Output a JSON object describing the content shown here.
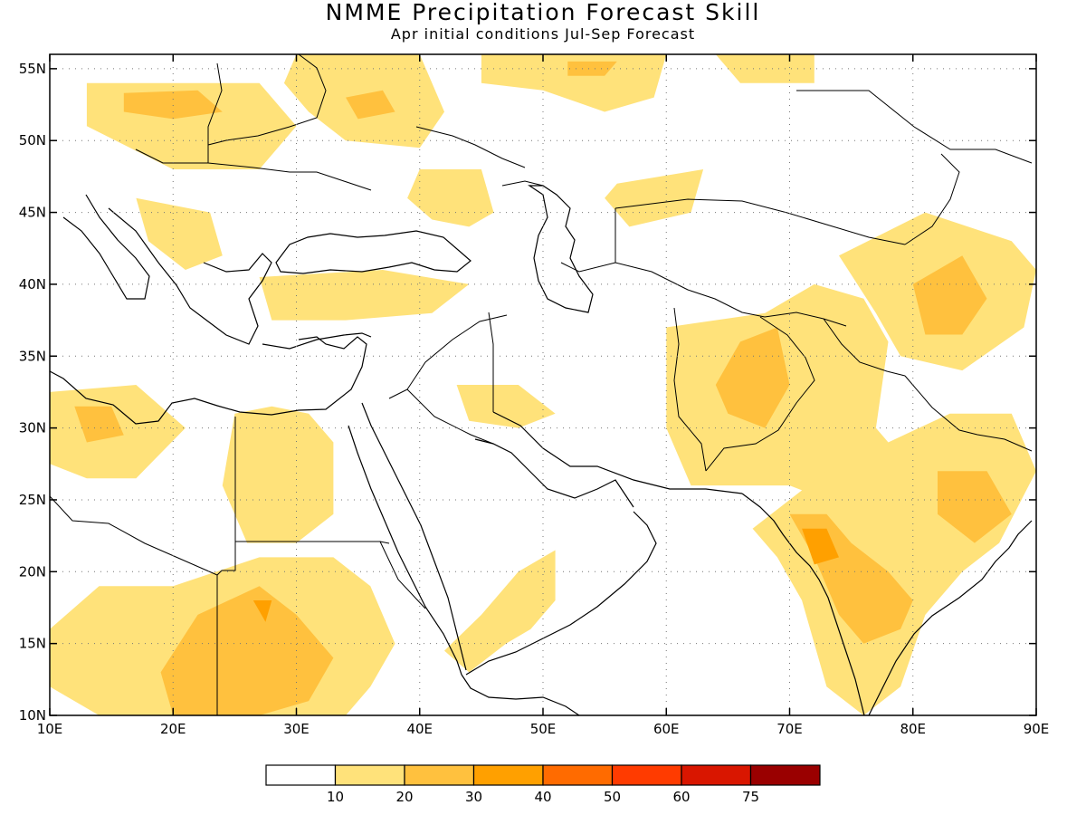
{
  "title": "NMME Precipitation Forecast Skill",
  "subtitle": "Apr initial conditions  Jul-Sep Forecast",
  "map": {
    "lon_range": [
      10,
      90
    ],
    "lat_range": [
      10,
      56
    ],
    "lon_ticks": [
      "10E",
      "20E",
      "30E",
      "40E",
      "50E",
      "60E",
      "70E",
      "80E",
      "90E"
    ],
    "lat_ticks": [
      "10N",
      "15N",
      "20N",
      "25N",
      "30N",
      "35N",
      "40N",
      "45N",
      "50N",
      "55N"
    ],
    "grid": "dotted"
  },
  "colorbar": {
    "labels": [
      "10",
      "20",
      "30",
      "40",
      "50",
      "60",
      "75"
    ],
    "colors": [
      "#ffffff",
      "#ffe27a",
      "#ffc13e",
      "#ffa000",
      "#ff6b00",
      "#ff3b00",
      "#d91600",
      "#9a0000"
    ]
  },
  "skill_regions": [
    {
      "level": 1,
      "pts": [
        [
          13,
          54
        ],
        [
          27,
          54
        ],
        [
          30,
          51
        ],
        [
          27,
          48
        ],
        [
          20,
          48
        ],
        [
          13,
          51
        ]
      ]
    },
    {
      "level": 2,
      "pts": [
        [
          16,
          53.3
        ],
        [
          22,
          53.5
        ],
        [
          24,
          52
        ],
        [
          20,
          51.5
        ],
        [
          16,
          52
        ]
      ]
    },
    {
      "level": 1,
      "pts": [
        [
          30,
          56
        ],
        [
          40,
          56
        ],
        [
          42,
          52
        ],
        [
          40,
          49.5
        ],
        [
          34,
          50
        ],
        [
          31,
          52
        ],
        [
          29,
          54
        ]
      ]
    },
    {
      "level": 2,
      "pts": [
        [
          34,
          53
        ],
        [
          37,
          53.5
        ],
        [
          38,
          52
        ],
        [
          35,
          51.5
        ]
      ]
    },
    {
      "level": 1,
      "pts": [
        [
          45,
          56
        ],
        [
          60,
          56
        ],
        [
          59,
          53
        ],
        [
          55,
          52
        ],
        [
          50,
          53.5
        ],
        [
          45,
          54
        ]
      ]
    },
    {
      "level": 2,
      "pts": [
        [
          52,
          55.5
        ],
        [
          56,
          55.5
        ],
        [
          55,
          54.5
        ],
        [
          52,
          54.5
        ]
      ]
    },
    {
      "level": 1,
      "pts": [
        [
          64,
          56
        ],
        [
          72,
          56
        ],
        [
          72,
          54
        ],
        [
          66,
          54
        ]
      ]
    },
    {
      "level": 1,
      "pts": [
        [
          40,
          48
        ],
        [
          45,
          48
        ],
        [
          46,
          45
        ],
        [
          44,
          44
        ],
        [
          41,
          44.5
        ],
        [
          39,
          46
        ]
      ]
    },
    {
      "level": 1,
      "pts": [
        [
          56,
          47
        ],
        [
          63,
          48
        ],
        [
          62,
          45
        ],
        [
          57,
          44
        ],
        [
          55,
          46
        ]
      ]
    },
    {
      "level": 1,
      "pts": [
        [
          17,
          46
        ],
        [
          23,
          45
        ],
        [
          24,
          42
        ],
        [
          21,
          41
        ],
        [
          18,
          43
        ]
      ]
    },
    {
      "level": 1,
      "pts": [
        [
          27,
          40.5
        ],
        [
          37,
          41
        ],
        [
          44,
          40
        ],
        [
          41,
          38
        ],
        [
          34,
          37.5
        ],
        [
          28,
          37.5
        ]
      ]
    },
    {
      "level": 1,
      "pts": [
        [
          10,
          32.5
        ],
        [
          17,
          33
        ],
        [
          21,
          30
        ],
        [
          17,
          26.5
        ],
        [
          13,
          26.5
        ],
        [
          10,
          27.5
        ]
      ]
    },
    {
      "level": 2,
      "pts": [
        [
          12,
          31.5
        ],
        [
          15,
          31.5
        ],
        [
          16,
          29.5
        ],
        [
          13,
          29
        ]
      ]
    },
    {
      "level": 1,
      "pts": [
        [
          25,
          31
        ],
        [
          28,
          31.5
        ],
        [
          31,
          31
        ],
        [
          33,
          29
        ],
        [
          33,
          24
        ],
        [
          30,
          22
        ],
        [
          26,
          22
        ],
        [
          24,
          26
        ]
      ]
    },
    {
      "level": 1,
      "pts": [
        [
          43,
          33
        ],
        [
          48,
          33
        ],
        [
          51,
          31
        ],
        [
          48,
          30
        ],
        [
          44,
          30.5
        ]
      ]
    },
    {
      "level": 1,
      "pts": [
        [
          60,
          37
        ],
        [
          68,
          38
        ],
        [
          72,
          40
        ],
        [
          76,
          39
        ],
        [
          78,
          36
        ],
        [
          77,
          30
        ],
        [
          79,
          28
        ],
        [
          80,
          25
        ],
        [
          76,
          24
        ],
        [
          70,
          26
        ],
        [
          62,
          26
        ],
        [
          60,
          30
        ]
      ]
    },
    {
      "level": 2,
      "pts": [
        [
          66,
          36
        ],
        [
          69,
          37
        ],
        [
          70,
          33
        ],
        [
          68,
          30
        ],
        [
          65,
          31
        ],
        [
          64,
          33
        ]
      ]
    },
    {
      "level": 1,
      "pts": [
        [
          74,
          42
        ],
        [
          81,
          45
        ],
        [
          88,
          43
        ],
        [
          90,
          41
        ],
        [
          89,
          37
        ],
        [
          84,
          34
        ],
        [
          79,
          35
        ],
        [
          77,
          38
        ]
      ]
    },
    {
      "level": 2,
      "pts": [
        [
          80,
          40
        ],
        [
          84,
          42
        ],
        [
          86,
          39
        ],
        [
          84,
          36.5
        ],
        [
          81,
          36.5
        ]
      ]
    },
    {
      "level": 1,
      "pts": [
        [
          73,
          27
        ],
        [
          78,
          29
        ],
        [
          83,
          31
        ],
        [
          88,
          31
        ],
        [
          90,
          27
        ],
        [
          87,
          22
        ],
        [
          84,
          20
        ],
        [
          81,
          17
        ],
        [
          79,
          12
        ],
        [
          76,
          10
        ],
        [
          73,
          12
        ],
        [
          71,
          18
        ],
        [
          69,
          21
        ],
        [
          67,
          23
        ],
        [
          70,
          25
        ]
      ]
    },
    {
      "level": 2,
      "pts": [
        [
          70,
          24
        ],
        [
          73,
          24
        ],
        [
          75,
          22
        ],
        [
          78,
          20
        ],
        [
          80,
          18
        ],
        [
          79,
          16
        ],
        [
          76,
          15
        ],
        [
          74,
          17
        ],
        [
          72,
          21
        ]
      ]
    },
    {
      "level": 3,
      "pts": [
        [
          71,
          23
        ],
        [
          73,
          23
        ],
        [
          74,
          21
        ],
        [
          72,
          20.5
        ]
      ]
    },
    {
      "level": 2,
      "pts": [
        [
          82,
          27
        ],
        [
          86,
          27
        ],
        [
          88,
          24
        ],
        [
          85,
          22
        ],
        [
          82,
          24
        ]
      ]
    },
    {
      "level": 1,
      "pts": [
        [
          10,
          16
        ],
        [
          14,
          19
        ],
        [
          20,
          19
        ],
        [
          27,
          21
        ],
        [
          33,
          21
        ],
        [
          36,
          19
        ],
        [
          38,
          15
        ],
        [
          36,
          12
        ],
        [
          34,
          10
        ],
        [
          14,
          10
        ],
        [
          10,
          12
        ]
      ]
    },
    {
      "level": 2,
      "pts": [
        [
          22,
          17
        ],
        [
          27,
          19
        ],
        [
          30,
          17
        ],
        [
          33,
          14
        ],
        [
          31,
          11
        ],
        [
          27,
          10
        ],
        [
          20,
          10
        ],
        [
          19,
          13
        ]
      ]
    },
    {
      "level": 3,
      "pts": [
        [
          26.5,
          18
        ],
        [
          28,
          18
        ],
        [
          27.5,
          16.5
        ]
      ]
    },
    {
      "level": 1,
      "pts": [
        [
          48,
          20
        ],
        [
          51,
          21.5
        ],
        [
          51,
          18
        ],
        [
          49,
          16
        ],
        [
          47,
          15
        ],
        [
          44,
          13
        ],
        [
          42,
          14.5
        ],
        [
          45,
          17
        ]
      ]
    }
  ]
}
